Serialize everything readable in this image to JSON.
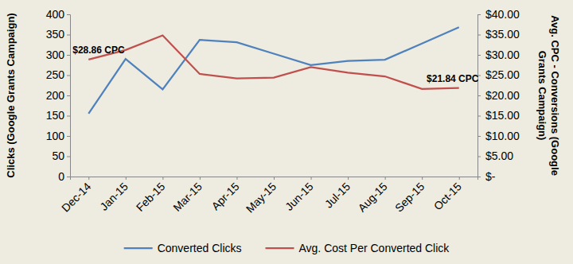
{
  "chart_data": {
    "type": "line",
    "categories": [
      "Dec-14",
      "Jan-15",
      "Feb-15",
      "Mar-15",
      "Apr-15",
      "May-15",
      "Jun-15",
      "Jul-15",
      "Aug-15",
      "Sep-15",
      "Oct-15"
    ],
    "series": [
      {
        "name": "Converted Clicks",
        "color": "#4F81BD",
        "axis": "y",
        "values": [
          155,
          290,
          215,
          337,
          331,
          303,
          275,
          285,
          288,
          328,
          368
        ]
      },
      {
        "name": "Avg. Cost Per Converted Click",
        "color": "#C0504D",
        "axis": "y2",
        "values": [
          28.86,
          31.2,
          34.8,
          25.3,
          24.2,
          24.4,
          27.0,
          25.6,
          24.7,
          21.6,
          21.84
        ]
      }
    ],
    "y_label": "Clicks (Google Grants Campaign)",
    "y2_label": "Avg. CPC - Conversions (Google Grants Campaign)",
    "ylim": [
      0,
      400
    ],
    "yticks": [
      0,
      50,
      100,
      150,
      200,
      250,
      300,
      350,
      400
    ],
    "y2lim": [
      0,
      40
    ],
    "y2ticks": [
      {
        "value": 0,
        "label": "$-"
      },
      {
        "value": 5,
        "label": "$5.00"
      },
      {
        "value": 10,
        "label": "$10.00"
      },
      {
        "value": 15,
        "label": "$15.00"
      },
      {
        "value": 20,
        "label": "$20.00"
      },
      {
        "value": 25,
        "label": "$25.00"
      },
      {
        "value": 30,
        "label": "$30.00"
      },
      {
        "value": 35,
        "label": "$35.00"
      },
      {
        "value": 40,
        "label": "$40.00"
      }
    ],
    "annotations": [
      {
        "text": "$28.86 CPC",
        "x": "Dec-14",
        "y": 28.86,
        "axis": "y2"
      },
      {
        "text": "$21.84 CPC",
        "x": "Oct-15",
        "y": 21.84,
        "axis": "y2"
      }
    ],
    "grid": false,
    "legend": "bottom"
  }
}
